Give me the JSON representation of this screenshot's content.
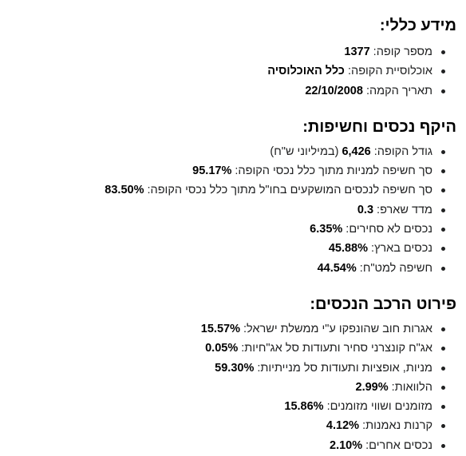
{
  "general": {
    "heading": "מידע כללי:",
    "items": [
      {
        "label": "מספר קופה: ",
        "value": "1377",
        "suffix": ""
      },
      {
        "label": "אוכלוסיית הקופה: ",
        "value": "כלל האוכלוסיה",
        "suffix": ""
      },
      {
        "label": "תאריך הקמה: ",
        "value": "22/10/2008",
        "suffix": ""
      }
    ]
  },
  "exposure": {
    "heading": "היקף נכסים וחשיפות:",
    "items": [
      {
        "label": "גודל הקופה: ",
        "value": "6,426",
        "suffix": " (במיליוני ש\"ח)"
      },
      {
        "label": "סך חשיפה למניות מתוך כלל נכסי הקופה: ",
        "value": "95.17%",
        "suffix": ""
      },
      {
        "label": "סך חשיפה לנכסים המושקעים בחו\"ל מתוך כלל נכסי הקופה: ",
        "value": "83.50%",
        "suffix": ""
      },
      {
        "label": "מדד שארפ: ",
        "value": "0.3",
        "suffix": ""
      },
      {
        "label": "נכסים לא סחירים: ",
        "value": "6.35%",
        "suffix": ""
      },
      {
        "label": "נכסים בארץ: ",
        "value": "45.88%",
        "suffix": ""
      },
      {
        "label": "חשיפה למט\"ח: ",
        "value": "44.54%",
        "suffix": ""
      }
    ]
  },
  "composition": {
    "heading": "פירוט הרכב הנכסים:",
    "items": [
      {
        "label": "אגרות חוב שהונפקו ע\"י ממשלת ישראל: ",
        "value": "15.57%",
        "suffix": ""
      },
      {
        "label": "אג\"ח קונצרני סחיר ותעודות סל אג\"חיות: ",
        "value": "0.05%",
        "suffix": ""
      },
      {
        "label": "מניות, אופציות ותעודות סל מנייתיות: ",
        "value": "59.30%",
        "suffix": ""
      },
      {
        "label": "הלוואות: ",
        "value": "2.99%",
        "suffix": ""
      },
      {
        "label": "מזומנים ושווי מזומנים: ",
        "value": "15.86%",
        "suffix": ""
      },
      {
        "label": "קרנות נאמנות: ",
        "value": "4.12%",
        "suffix": ""
      },
      {
        "label": "נכסים אחרים: ",
        "value": "2.10%",
        "suffix": ""
      }
    ]
  }
}
